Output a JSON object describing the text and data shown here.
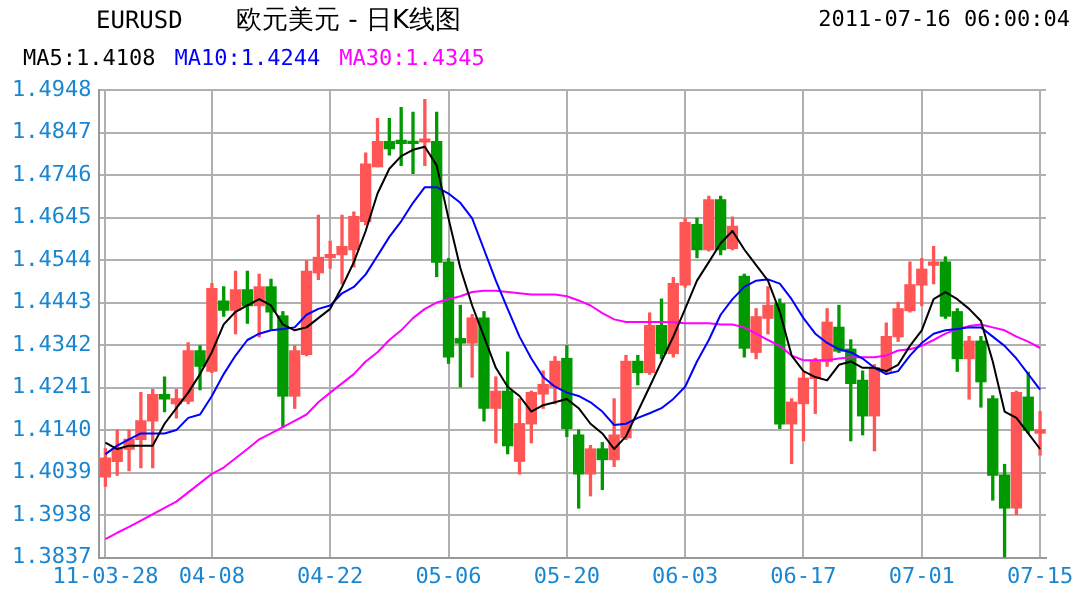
{
  "chart_data": {
    "type": "candlestick",
    "title": "欧元美元 - 日K线图",
    "subtitle": "EURUSD",
    "annotations": [
      "2011-07-16 06:00:04"
    ],
    "categories": [
      "11-03-28",
      null,
      null,
      null,
      null,
      null,
      null,
      null,
      null,
      "04-08",
      null,
      null,
      null,
      null,
      null,
      null,
      null,
      null,
      null,
      "04-22",
      null,
      null,
      null,
      null,
      null,
      null,
      null,
      null,
      null,
      "05-06",
      null,
      null,
      null,
      null,
      null,
      null,
      null,
      null,
      null,
      "05-20",
      null,
      null,
      null,
      null,
      null,
      null,
      null,
      null,
      null,
      "06-03",
      null,
      null,
      null,
      null,
      null,
      null,
      null,
      null,
      null,
      "06-17",
      null,
      null,
      null,
      null,
      null,
      null,
      null,
      null,
      null,
      "07-01",
      null,
      null,
      null,
      null,
      null,
      null,
      null,
      null,
      null,
      "07-15"
    ],
    "ohlc": [
      [
        1.4029,
        1.4095,
        1.4007,
        1.4073
      ],
      [
        1.4066,
        1.414,
        1.4033,
        1.4095
      ],
      [
        1.4095,
        1.414,
        1.4044,
        1.4118
      ],
      [
        1.4118,
        1.4229,
        1.4051,
        1.4162
      ],
      [
        1.4162,
        1.4236,
        1.4051,
        1.4224
      ],
      [
        1.4224,
        1.4266,
        1.4184,
        1.4214
      ],
      [
        1.4203,
        1.4236,
        1.4169,
        1.4214
      ],
      [
        1.4209,
        1.4347,
        1.4203,
        1.4328
      ],
      [
        1.4328,
        1.434,
        1.4236,
        1.4292
      ],
      [
        1.428,
        1.4488,
        1.4277,
        1.4476
      ],
      [
        1.4446,
        1.448,
        1.4411,
        1.4425
      ],
      [
        1.4425,
        1.4517,
        1.4369,
        1.4473
      ],
      [
        1.4473,
        1.4517,
        1.4394,
        1.4436
      ],
      [
        1.4436,
        1.451,
        1.4362,
        1.448
      ],
      [
        1.448,
        1.4498,
        1.438,
        1.4421
      ],
      [
        1.4411,
        1.4421,
        1.4147,
        1.4221
      ],
      [
        1.4221,
        1.434,
        1.4192,
        1.4328
      ],
      [
        1.432,
        1.4542,
        1.4317,
        1.4517
      ],
      [
        1.4514,
        1.465,
        1.4498,
        1.455
      ],
      [
        1.455,
        1.4588,
        1.4525,
        1.4557
      ],
      [
        1.4557,
        1.465,
        1.4488,
        1.4576
      ],
      [
        1.4569,
        1.4658,
        1.4528,
        1.4647
      ],
      [
        1.4636,
        1.4798,
        1.4628,
        1.4772
      ],
      [
        1.4766,
        1.488,
        1.4766,
        1.4825
      ],
      [
        1.4825,
        1.488,
        1.4794,
        1.4809
      ],
      [
        1.4828,
        1.4906,
        1.4769,
        1.4821
      ],
      [
        1.4825,
        1.4895,
        1.475,
        1.4821
      ],
      [
        1.4825,
        1.4925,
        1.4769,
        1.4831
      ],
      [
        1.4825,
        1.4895,
        1.4505,
        1.4539
      ],
      [
        1.4539,
        1.4547,
        1.4299,
        1.4314
      ],
      [
        1.4357,
        1.4436,
        1.4243,
        1.4347
      ],
      [
        1.4347,
        1.4414,
        1.4266,
        1.4406
      ],
      [
        1.4406,
        1.4421,
        1.4162,
        1.4192
      ],
      [
        1.4192,
        1.4266,
        1.411,
        1.4232
      ],
      [
        1.4232,
        1.4325,
        1.4084,
        1.4103
      ],
      [
        1.4066,
        1.4214,
        1.4036,
        1.4155
      ],
      [
        1.4155,
        1.4232,
        1.411,
        1.4229
      ],
      [
        1.4226,
        1.428,
        1.4192,
        1.4248
      ],
      [
        1.4243,
        1.4314,
        1.4203,
        1.4303
      ],
      [
        1.431,
        1.434,
        1.4125,
        1.4144
      ],
      [
        1.4128,
        1.414,
        1.3955,
        1.4036
      ],
      [
        1.4036,
        1.4103,
        1.3984,
        1.4095
      ],
      [
        1.4095,
        1.411,
        1.3999,
        1.407
      ],
      [
        1.407,
        1.4214,
        1.4054,
        1.4128
      ],
      [
        1.4122,
        1.4317,
        1.4118,
        1.4303
      ],
      [
        1.4303,
        1.4317,
        1.4248,
        1.4277
      ],
      [
        1.4277,
        1.4418,
        1.4273,
        1.4388
      ],
      [
        1.4388,
        1.4451,
        1.431,
        1.4322
      ],
      [
        1.4322,
        1.4502,
        1.4314,
        1.4488
      ],
      [
        1.4485,
        1.4643,
        1.448,
        1.4633
      ],
      [
        1.4628,
        1.4643,
        1.455,
        1.4569
      ],
      [
        1.4569,
        1.4695,
        1.4566,
        1.4687
      ],
      [
        1.4687,
        1.4695,
        1.4557,
        1.4569
      ],
      [
        1.4572,
        1.4646,
        1.4569,
        1.4624
      ],
      [
        1.4505,
        1.451,
        1.4314,
        1.4335
      ],
      [
        1.4325,
        1.4428,
        1.431,
        1.4409
      ],
      [
        1.4406,
        1.448,
        1.4369,
        1.4436
      ],
      [
        1.444,
        1.4451,
        1.4144,
        1.4155
      ],
      [
        1.4155,
        1.4214,
        1.4061,
        1.4206
      ],
      [
        1.4203,
        1.4277,
        1.4115,
        1.4263
      ],
      [
        1.4263,
        1.431,
        1.418,
        1.4303
      ],
      [
        1.4303,
        1.4428,
        1.4292,
        1.4396
      ],
      [
        1.4384,
        1.4436,
        1.4325,
        1.4328
      ],
      [
        1.4332,
        1.4354,
        1.4115,
        1.4251
      ],
      [
        1.4258,
        1.428,
        1.4129,
        1.4174
      ],
      [
        1.4174,
        1.4295,
        1.4091,
        1.4288
      ],
      [
        1.428,
        1.4394,
        1.4276,
        1.4362
      ],
      [
        1.4362,
        1.4443,
        1.4351,
        1.4428
      ],
      [
        1.4424,
        1.4539,
        1.4421,
        1.4485
      ],
      [
        1.4485,
        1.4547,
        1.4436,
        1.4522
      ],
      [
        1.4532,
        1.4576,
        1.4488,
        1.4539
      ],
      [
        1.4539,
        1.4551,
        1.4406,
        1.4411
      ],
      [
        1.4421,
        1.4428,
        1.428,
        1.431
      ],
      [
        1.431,
        1.4362,
        1.4214,
        1.4351
      ],
      [
        1.4351,
        1.4362,
        1.4195,
        1.4255
      ],
      [
        1.4214,
        1.4221,
        1.3974,
        1.4033
      ],
      [
        1.4033,
        1.4058,
        1.3838,
        1.3955
      ],
      [
        1.3955,
        1.4232,
        1.394,
        1.4229
      ],
      [
        1.4218,
        1.4277,
        1.4133,
        1.414
      ],
      [
        1.4133,
        1.4184,
        1.4081,
        1.414
      ]
    ],
    "colors": [
      "#ff5555",
      "#ff5555",
      "#ff5555",
      "#ff5555",
      "#ff5555",
      "#009900",
      "#ff5555",
      "#ff5555",
      "#009900",
      "#ff5555",
      "#009900",
      "#ff5555",
      "#009900",
      "#ff5555",
      "#009900",
      "#009900",
      "#ff5555",
      "#ff5555",
      "#ff5555",
      "#ff5555",
      "#ff5555",
      "#ff5555",
      "#ff5555",
      "#ff5555",
      "#009900",
      "#009900",
      "#009900",
      "#ff5555",
      "#009900",
      "#009900",
      "#009900",
      "#ff5555",
      "#009900",
      "#ff5555",
      "#009900",
      "#ff5555",
      "#ff5555",
      "#ff5555",
      "#ff5555",
      "#009900",
      "#009900",
      "#ff5555",
      "#009900",
      "#ff5555",
      "#ff5555",
      "#009900",
      "#ff5555",
      "#009900",
      "#ff5555",
      "#ff5555",
      "#009900",
      "#ff5555",
      "#009900",
      "#ff5555",
      "#009900",
      "#ff5555",
      "#ff5555",
      "#009900",
      "#ff5555",
      "#ff5555",
      "#ff5555",
      "#ff5555",
      "#009900",
      "#009900",
      "#009900",
      "#ff5555",
      "#ff5555",
      "#ff5555",
      "#ff5555",
      "#ff5555",
      "#ff5555",
      "#009900",
      "#009900",
      "#ff5555",
      "#009900",
      "#009900",
      "#009900",
      "#ff5555",
      "#009900",
      "#ff5555"
    ],
    "series": [
      {
        "type": "line",
        "name": "MA5:1.4108",
        "color": "#000000",
        "values": [
          1.411,
          1.4095,
          1.4103,
          1.4103,
          1.4103,
          1.4155,
          1.4192,
          1.4229,
          1.4273,
          1.4325,
          1.4391,
          1.4421,
          1.4436,
          1.4451,
          1.4436,
          1.4391,
          1.4377,
          1.4384,
          1.4406,
          1.4428,
          1.448,
          1.4539,
          1.4613,
          1.4702,
          1.4761,
          1.4791,
          1.4806,
          1.4813,
          1.4769,
          1.4643,
          1.4525,
          1.4436,
          1.4362,
          1.4288,
          1.4243,
          1.4221,
          1.4184,
          1.4199,
          1.4206,
          1.4214,
          1.4192,
          1.4155,
          1.4132,
          1.4095,
          1.4125,
          1.4184,
          1.4243,
          1.4303,
          1.4362,
          1.4428,
          1.4495,
          1.4539,
          1.4584,
          1.4613,
          1.4569,
          1.4532,
          1.4495,
          1.4421,
          1.4317,
          1.428,
          1.4266,
          1.4258,
          1.4295,
          1.4303,
          1.4288,
          1.4288,
          1.428,
          1.4295,
          1.434,
          1.4377,
          1.4451,
          1.4468,
          1.4451,
          1.4428,
          1.4399,
          1.4303,
          1.4184,
          1.4169,
          1.4132,
          1.4095
        ]
      },
      {
        "type": "line",
        "name": "MA10:1.4244",
        "color": "#0000ff",
        "values": [
          1.4083,
          1.4103,
          1.4118,
          1.4132,
          1.4132,
          1.4132,
          1.414,
          1.4169,
          1.4177,
          1.4221,
          1.4273,
          1.4317,
          1.4354,
          1.4369,
          1.4377,
          1.438,
          1.4384,
          1.4414,
          1.4428,
          1.4436,
          1.4465,
          1.448,
          1.451,
          1.4554,
          1.4599,
          1.4636,
          1.468,
          1.4717,
          1.4717,
          1.4702,
          1.468,
          1.4643,
          1.4569,
          1.4495,
          1.4428,
          1.4362,
          1.431,
          1.4266,
          1.4243,
          1.4229,
          1.4221,
          1.4206,
          1.4184,
          1.4152,
          1.4155,
          1.4169,
          1.418,
          1.4192,
          1.4214,
          1.4243,
          1.4303,
          1.4354,
          1.4414,
          1.4451,
          1.448,
          1.4495,
          1.4498,
          1.4488,
          1.4451,
          1.4406,
          1.4369,
          1.4347,
          1.4332,
          1.4325,
          1.431,
          1.4288,
          1.4273,
          1.428,
          1.4317,
          1.4347,
          1.4369,
          1.4377,
          1.438,
          1.4384,
          1.4384,
          1.4362,
          1.434,
          1.431,
          1.4273,
          1.4236
        ]
      },
      {
        "type": "line",
        "name": "MA30:1.4345",
        "color": "#ff00ff",
        "values": [
          1.3881,
          1.3896,
          1.391,
          1.3925,
          1.394,
          1.3955,
          1.397,
          1.3992,
          1.4014,
          1.4036,
          1.4051,
          1.4073,
          1.4095,
          1.4118,
          1.4132,
          1.4147,
          1.4162,
          1.4177,
          1.4206,
          1.4229,
          1.4251,
          1.4273,
          1.4303,
          1.4325,
          1.4354,
          1.4377,
          1.4406,
          1.4428,
          1.4443,
          1.4451,
          1.4458,
          1.4468,
          1.4471,
          1.4471,
          1.4468,
          1.4465,
          1.4462,
          1.4462,
          1.4462,
          1.4458,
          1.4448,
          1.4436,
          1.4418,
          1.4403,
          1.4397,
          1.4397,
          1.4397,
          1.4397,
          1.4396,
          1.4394,
          1.4394,
          1.4394,
          1.4391,
          1.4391,
          1.4384,
          1.4369,
          1.4354,
          1.434,
          1.4317,
          1.4306,
          1.4306,
          1.4306,
          1.431,
          1.4313,
          1.4313,
          1.4313,
          1.4317,
          1.4329,
          1.4332,
          1.434,
          1.4354,
          1.4369,
          1.438,
          1.4387,
          1.4391,
          1.4384,
          1.4377,
          1.4362,
          1.435,
          1.4335
        ]
      }
    ],
    "ylim": [
      1.3837,
      1.4948
    ],
    "yticks": [
      1.3837,
      1.3938,
      1.4039,
      {
        "value": 1.414,
        "label": "1.4140"
      },
      1.4241,
      1.4342,
      1.4443,
      1.4544,
      1.4645,
      1.4746,
      1.4847,
      1.4948
    ],
    "grid": true,
    "legend": "top left",
    "marker": "none"
  }
}
